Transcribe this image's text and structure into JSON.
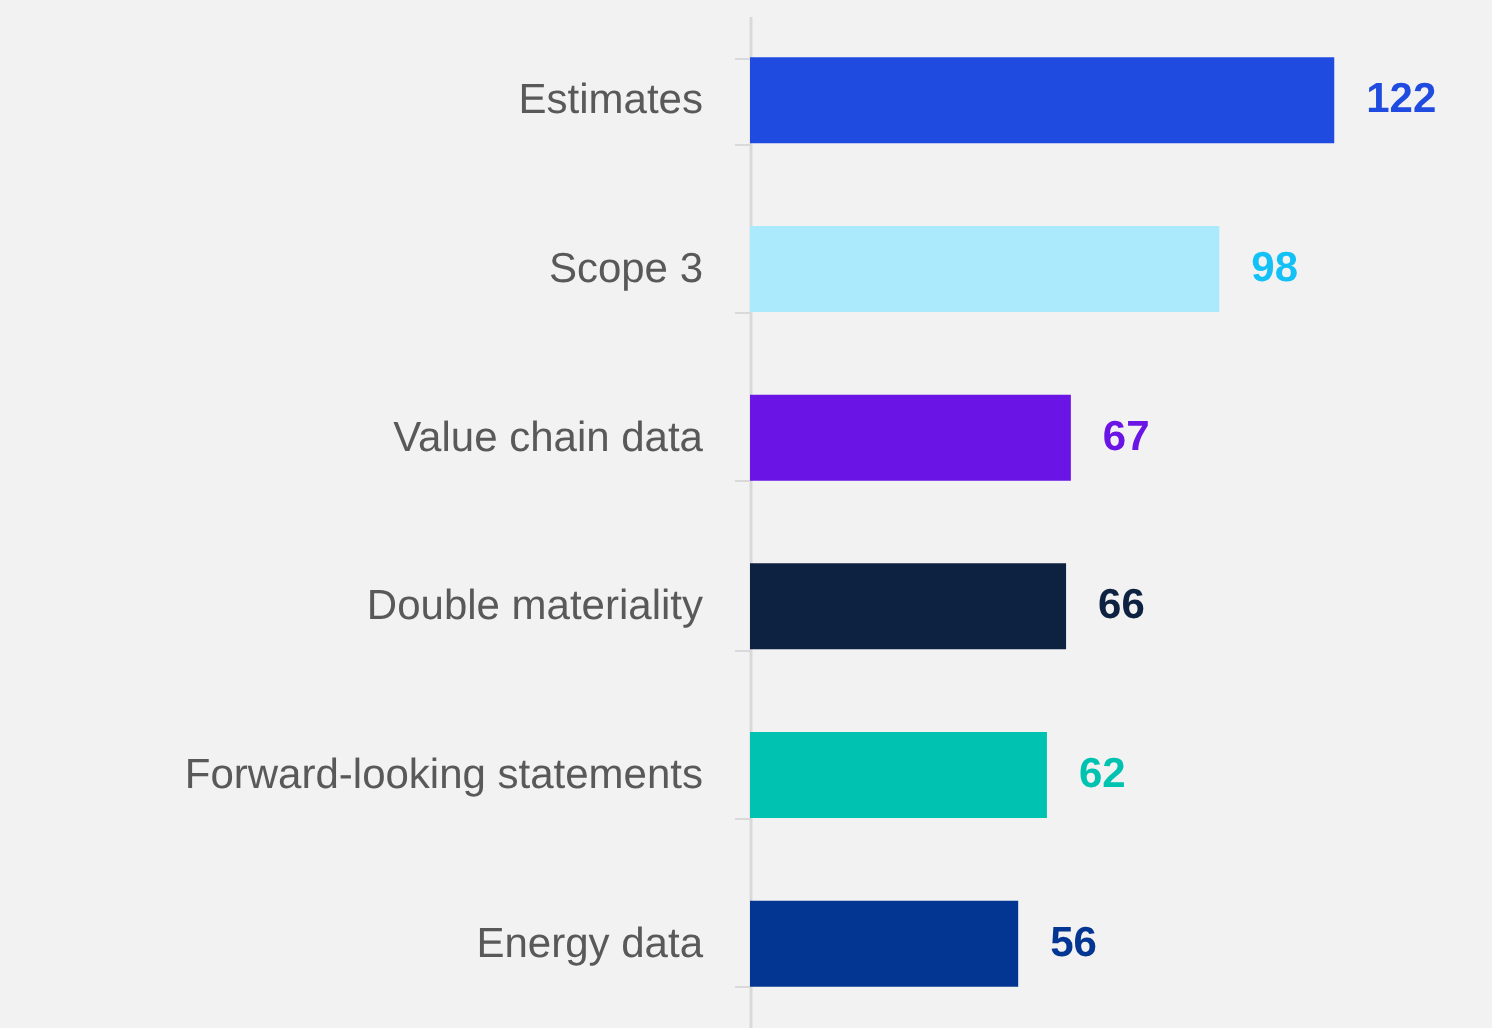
{
  "chart_data": {
    "type": "bar",
    "orientation": "horizontal",
    "data_labels": true,
    "categories": [
      "Estimates",
      "Scope 3",
      "Value chain data",
      "Double materiality",
      "Forward-looking statements",
      "Energy data"
    ],
    "values": [
      122,
      98,
      67,
      66,
      62,
      56
    ],
    "colors": [
      "#1f4be0",
      "#abe9fc",
      "#6a14e6",
      "#0d2240",
      "#00c2b0",
      "#033592"
    ]
  }
}
